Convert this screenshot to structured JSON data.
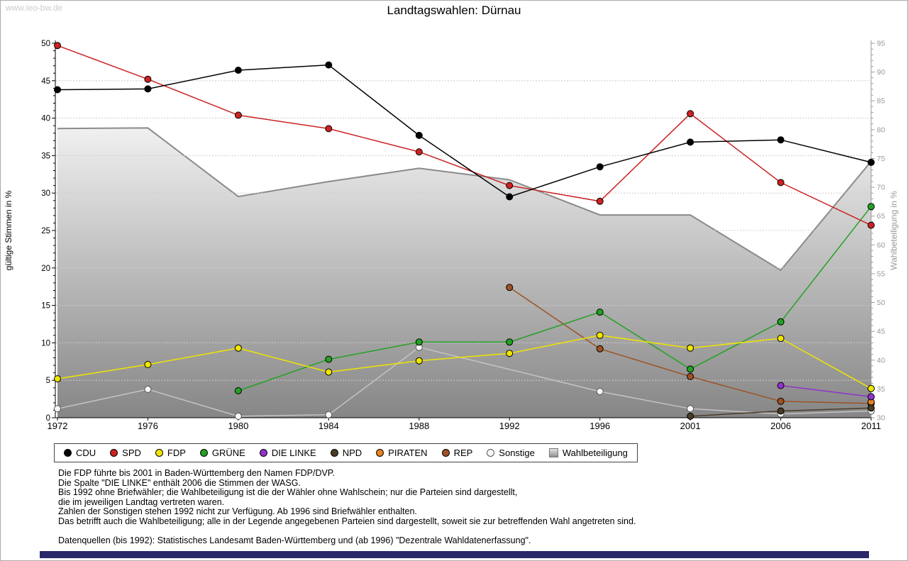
{
  "page": {
    "watermark": "www.leo-bw.de",
    "title": "Landtagswahlen: Dürnau"
  },
  "chart_data": {
    "type": "line",
    "title": "Landtagswahlen: Dürnau",
    "categories": [
      "1972",
      "1976",
      "1980",
      "1984",
      "1988",
      "1992",
      "1996",
      "2001",
      "2006",
      "2011"
    ],
    "y_left": {
      "label": "gültige Stimmen in %",
      "min": 0,
      "max": 50,
      "tick_step": 5
    },
    "y_right": {
      "label": "Wahlbeteiligung in %",
      "min": 30,
      "max": 95,
      "tick_step": 5
    },
    "grid": "horizontal-dotted",
    "legend_position": "bottom",
    "series": [
      {
        "name": "CDU",
        "color": "#000000",
        "values": [
          43.8,
          43.9,
          46.4,
          47.1,
          37.7,
          29.5,
          33.5,
          36.8,
          37.1,
          34.1
        ]
      },
      {
        "name": "SPD",
        "color": "#cc2222",
        "values": [
          49.7,
          45.2,
          40.4,
          38.6,
          35.5,
          31.0,
          28.9,
          40.6,
          31.4,
          25.7
        ]
      },
      {
        "name": "FDP",
        "color": "#efe600",
        "values": [
          5.2,
          7.1,
          9.3,
          6.1,
          7.6,
          8.6,
          11.0,
          9.3,
          10.6,
          3.9
        ]
      },
      {
        "name": "GRÜNE",
        "color": "#23a123",
        "values": [
          null,
          null,
          3.6,
          7.8,
          10.1,
          10.1,
          14.1,
          6.5,
          12.8,
          28.2
        ]
      },
      {
        "name": "DIE LINKE",
        "color": "#9232cc",
        "values": [
          null,
          null,
          null,
          null,
          null,
          null,
          null,
          null,
          4.3,
          2.8
        ]
      },
      {
        "name": "NPD",
        "color": "#4a3b27",
        "values": [
          null,
          null,
          null,
          null,
          null,
          null,
          null,
          0.2,
          0.9,
          1.3
        ]
      },
      {
        "name": "PIRATEN",
        "color": "#e8821e",
        "values": [
          null,
          null,
          null,
          null,
          null,
          null,
          null,
          null,
          null,
          2.1
        ]
      },
      {
        "name": "REP",
        "color": "#9e5226",
        "values": [
          null,
          null,
          null,
          null,
          null,
          17.4,
          9.2,
          5.5,
          2.2,
          1.9
        ]
      },
      {
        "name": "Sonstige",
        "color": "#c4c4c4",
        "marker_fill": "#f7f7f7",
        "marker_stroke": "#555555",
        "values": [
          1.2,
          3.8,
          0.2,
          0.4,
          9.4,
          null,
          3.5,
          1.2,
          0.5,
          0.9
        ]
      }
    ],
    "turnout": {
      "name": "Wahlbeteiligung",
      "axis": "right",
      "fill_top": "#f0f0f0",
      "fill_bottom": "#868686",
      "edge_color": "#8a8a8a",
      "values": [
        80.2,
        80.3,
        68.4,
        71.0,
        73.3,
        71.3,
        65.2,
        65.2,
        55.6,
        74.5
      ]
    }
  },
  "footer": {
    "lines": [
      "Die FDP führte bis 2001 in Baden-Württemberg den Namen FDP/DVP.",
      "Die Spalte \"DIE LINKE\" enthält 2006 die Stimmen der WASG.",
      "Bis 1992 ohne Briefwähler; die Wahlbeteiligung ist die der Wähler ohne Wahlschein; nur die Parteien sind dargestellt,",
      "die im jeweiligen Landtag vertreten waren.",
      "Zahlen der Sonstigen stehen 1992 nicht zur Verfügung. Ab 1996 sind Briefwähler enthalten.",
      "Das betrifft auch die Wahlbeteiligung; alle in der Legende angegebenen Parteien sind dargestellt, soweit sie zur betreffenden Wahl angetreten sind.",
      "Datenquellen (bis 1992): Statistisches Landesamt Baden-Württemberg und (ab 1996) \"Dezentrale Wahldatenerfassung\"."
    ]
  }
}
